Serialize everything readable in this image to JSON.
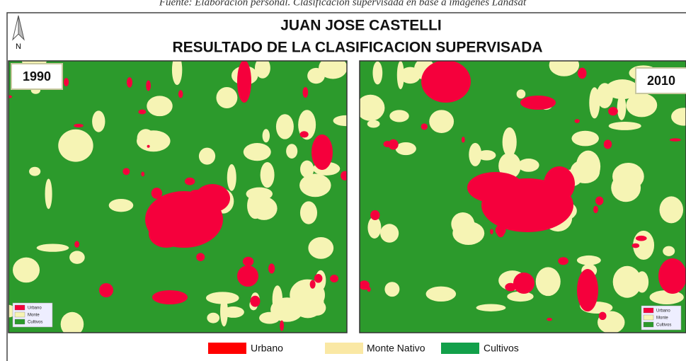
{
  "caption": "Fuente: Elaboración personal. Clasificación supervisada en base a imágenes Landsat",
  "north": "N",
  "title": [
    "JUAN JOSE CASTELLI",
    "RESULTADO DE LA CLASIFICACION SUPERVISADA"
  ],
  "maps": [
    {
      "year": "1990",
      "legend": [
        "Urbano",
        "Monte",
        "Cultivos"
      ]
    },
    {
      "year": "2010",
      "legend": [
        "Urbano",
        "Monte",
        "Cultivos"
      ]
    }
  ],
  "legend": [
    "Urbano",
    "Monte Nativo",
    "Cultivos"
  ]
}
